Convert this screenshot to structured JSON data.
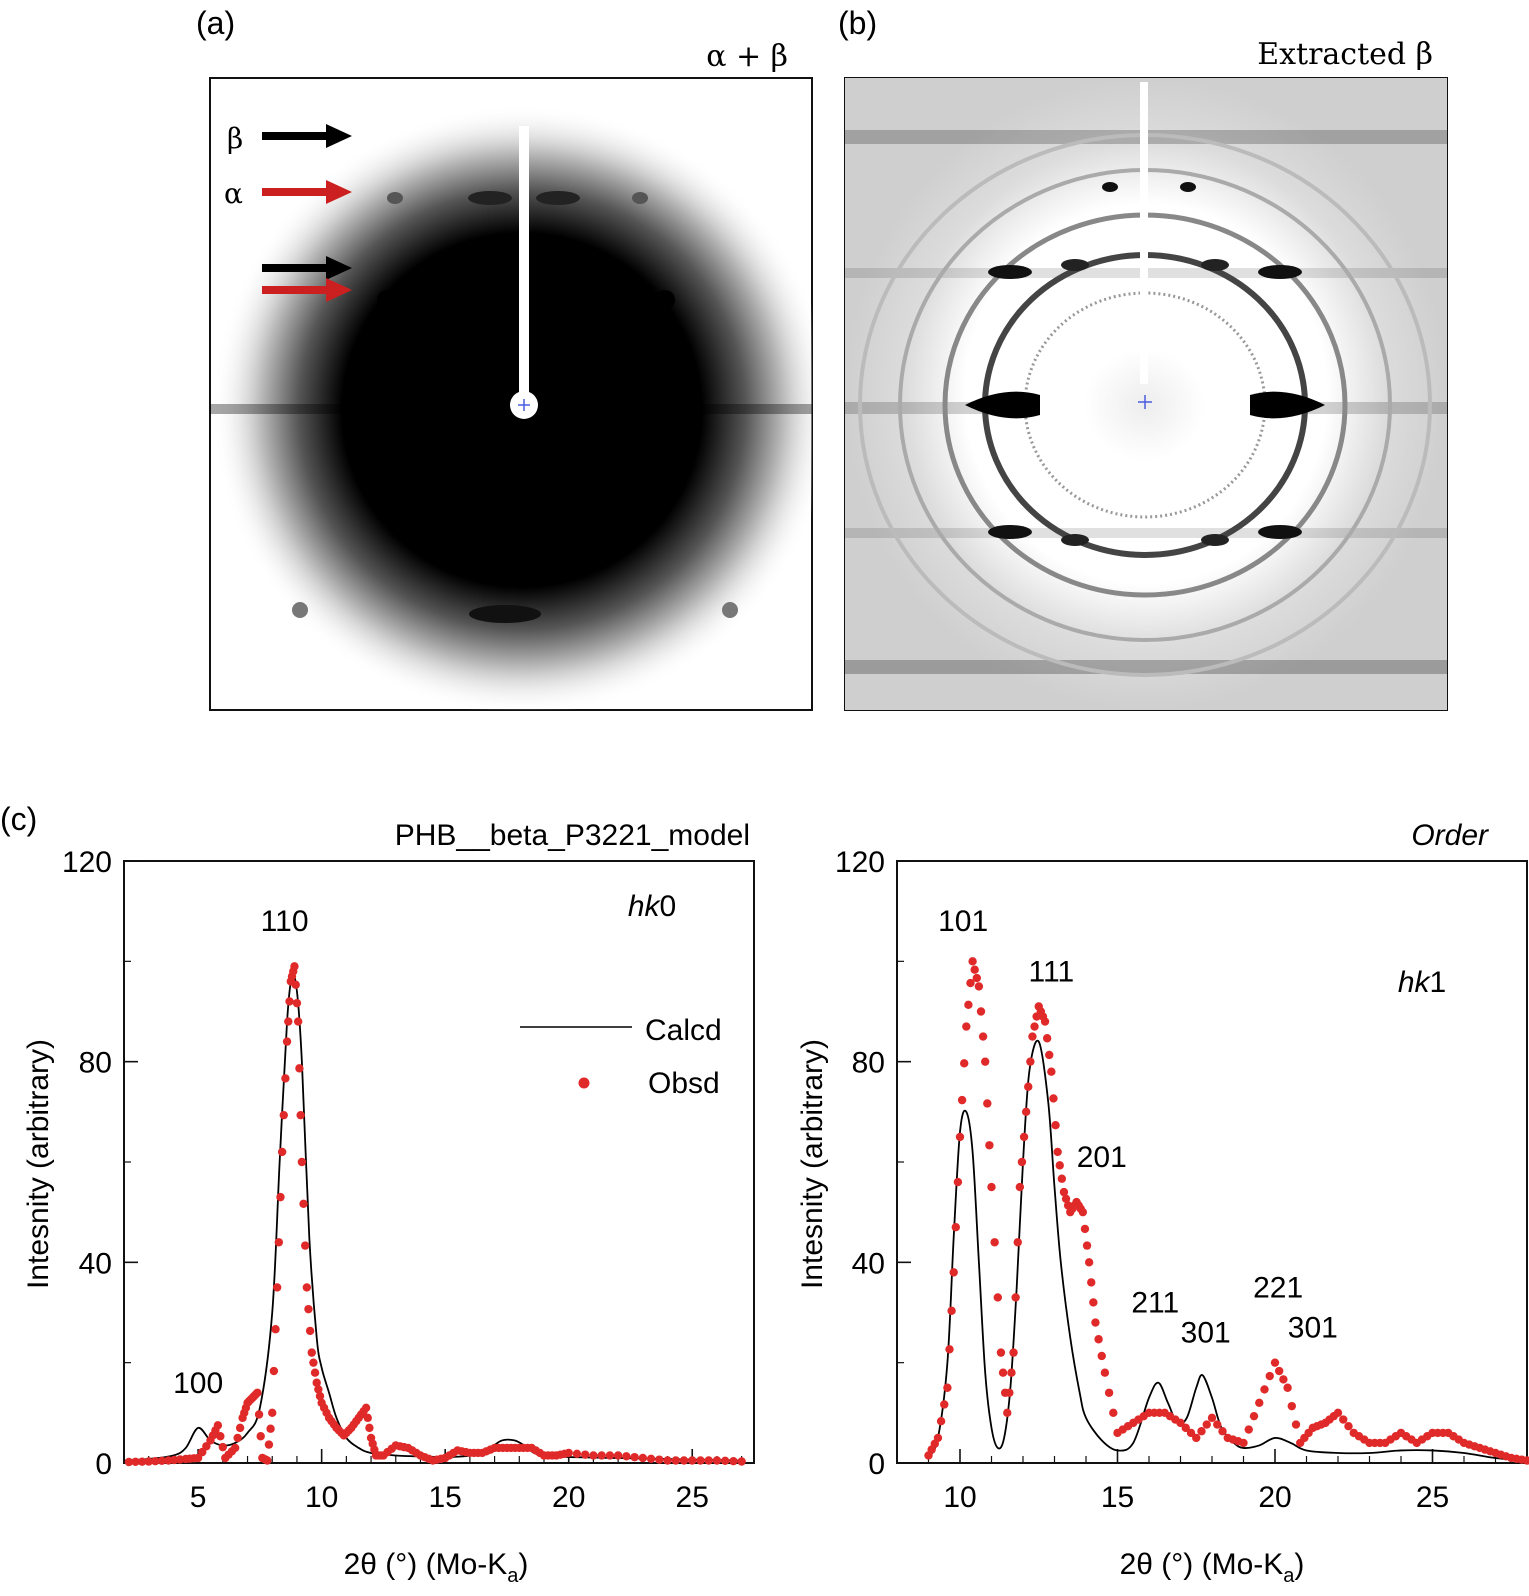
{
  "panel_a": {
    "letter": "(a)",
    "title": "α + β",
    "arrows": [
      {
        "label": "β",
        "color": "#000000"
      },
      {
        "label": "α",
        "color": "#cc1f1f"
      },
      {
        "label": "",
        "color": "#000000"
      },
      {
        "label": "",
        "color": "#cc1f1f"
      }
    ]
  },
  "panel_b": {
    "letter": "(b)",
    "title": "Extracted β"
  },
  "panel_c": {
    "letter": "(c)"
  },
  "colors": {
    "calc": "#000000",
    "obs": "#e02a2a"
  },
  "chart_data": [
    {
      "type": "line",
      "title": "PHB__beta_P3221_model",
      "annotation": "hk0",
      "xlabel_main": "2θ (°) (Mo-K",
      "xlabel_sub": "a",
      "xlabel_end": ")",
      "ylabel": "Intesnity (arbitrary)",
      "xlim": [
        2,
        27.5
      ],
      "ylim": [
        0,
        120
      ],
      "xticks": [
        5,
        10,
        15,
        20,
        25
      ],
      "yticks": [
        0,
        40,
        80,
        120
      ],
      "legend": {
        "position": "top-right",
        "calc_label": "Calcd",
        "obs_label": "Obsd"
      },
      "peak_labels": [
        {
          "text": "100",
          "x": 5.0,
          "y": 14
        },
        {
          "text": "110",
          "x": 8.5,
          "y": 106
        }
      ],
      "series": [
        {
          "name": "Calcd",
          "style": "line",
          "x": [
            2.0,
            3.0,
            4.0,
            4.5,
            5.0,
            5.5,
            6.0,
            6.5,
            7.0,
            7.5,
            8.0,
            8.3,
            8.6,
            8.8,
            9.0,
            9.2,
            9.5,
            9.8,
            10.0,
            10.3,
            10.6,
            11.0,
            11.5,
            12.0,
            13.0,
            14.0,
            15.0,
            16.0,
            16.8,
            17.3,
            17.8,
            18.2,
            18.6,
            19.0,
            20.0,
            22.0,
            24.0,
            26.0,
            27.0
          ],
          "y": [
            0.5,
            0.8,
            1.5,
            3.0,
            7.0,
            4.5,
            3.5,
            4.0,
            6.0,
            11.0,
            30.0,
            60.0,
            88.0,
            97.0,
            94.0,
            80.0,
            45.0,
            25.0,
            19.0,
            14.0,
            9.0,
            5.0,
            3.0,
            2.0,
            1.5,
            1.3,
            1.2,
            1.5,
            3.0,
            4.5,
            4.5,
            3.5,
            2.0,
            1.5,
            1.2,
            1.0,
            0.8,
            0.6,
            0.5
          ]
        },
        {
          "name": "Obsd",
          "style": "points",
          "x": [
            2.2,
            3.0,
            3.8,
            4.5,
            5.0,
            5.5,
            5.8,
            6.1,
            6.5,
            6.8,
            7.0,
            7.2,
            7.4,
            7.6,
            7.8,
            8.0,
            8.2,
            8.4,
            8.6,
            8.75,
            8.9,
            9.05,
            9.2,
            9.4,
            9.6,
            9.8,
            10.0,
            10.3,
            10.6,
            10.9,
            11.2,
            11.5,
            11.8,
            12.0,
            12.2,
            12.5,
            13.0,
            13.5,
            14.0,
            14.5,
            15.0,
            15.5,
            16.0,
            16.5,
            17.0,
            17.5,
            18.0,
            18.5,
            19.0,
            19.5,
            20.0,
            21.0,
            22.0,
            23.0,
            24.0,
            25.0,
            26.0,
            27.0
          ],
          "y": [
            0.2,
            0.3,
            0.5,
            0.8,
            1.0,
            4.5,
            7.5,
            1.0,
            3.0,
            9.0,
            12.0,
            13.0,
            14.0,
            1.0,
            0.5,
            10.0,
            35.0,
            62.0,
            84.0,
            96.0,
            99.0,
            88.0,
            60.0,
            35.0,
            22.0,
            16.0,
            12.0,
            9.0,
            7.0,
            5.5,
            7.0,
            9.0,
            11.0,
            5.0,
            1.5,
            1.5,
            3.5,
            3.0,
            1.5,
            0.5,
            1.0,
            2.5,
            2.0,
            2.0,
            3.0,
            3.0,
            3.0,
            3.0,
            1.5,
            1.5,
            2.0,
            1.5,
            1.5,
            1.0,
            0.5,
            0.5,
            0.5,
            0.3
          ]
        }
      ]
    },
    {
      "type": "line",
      "title": "Order",
      "annotation": "hk1",
      "xlabel_main": "2θ (°) (Mo-K",
      "xlabel_sub": "a",
      "xlabel_end": ")",
      "ylabel": "Intesnity (arbitrary)",
      "xlim": [
        8,
        28
      ],
      "ylim": [
        0,
        120
      ],
      "xticks": [
        10,
        15,
        20,
        25
      ],
      "yticks": [
        0,
        40,
        80,
        120
      ],
      "peak_labels": [
        {
          "text": "101",
          "x": 10.1,
          "y": 106
        },
        {
          "text": "111",
          "x": 12.9,
          "y": 96
        },
        {
          "text": "201",
          "x": 14.5,
          "y": 59
        },
        {
          "text": "211",
          "x": 16.2,
          "y": 30
        },
        {
          "text": "301",
          "x": 17.8,
          "y": 24
        },
        {
          "text": "221",
          "x": 20.1,
          "y": 33
        },
        {
          "text": "301",
          "x": 21.2,
          "y": 25
        }
      ],
      "series": [
        {
          "name": "Calcd",
          "style": "line",
          "x": [
            9.0,
            9.3,
            9.6,
            9.8,
            10.0,
            10.2,
            10.4,
            10.6,
            10.8,
            11.0,
            11.2,
            11.4,
            11.6,
            11.8,
            12.0,
            12.2,
            12.5,
            12.8,
            13.0,
            13.2,
            13.5,
            13.8,
            14.0,
            14.5,
            15.0,
            15.5,
            16.0,
            16.3,
            16.6,
            16.9,
            17.2,
            17.5,
            17.7,
            18.0,
            18.3,
            18.7,
            19.0,
            19.5,
            20.0,
            20.5,
            21.0,
            22.0,
            23.0,
            24.0,
            25.0,
            26.0,
            27.0,
            28.0
          ],
          "y": [
            1.0,
            5.0,
            20.0,
            45.0,
            66.0,
            70.0,
            62.0,
            40.0,
            18.0,
            7.0,
            3.0,
            5.0,
            15.0,
            35.0,
            60.0,
            78.0,
            84.0,
            72.0,
            55.0,
            40.0,
            25.0,
            14.0,
            9.0,
            4.5,
            2.5,
            4.0,
            13.0,
            16.0,
            12.0,
            8.0,
            9.0,
            15.0,
            17.5,
            13.0,
            7.0,
            4.0,
            3.0,
            3.5,
            5.0,
            4.0,
            2.5,
            2.0,
            2.0,
            2.5,
            2.5,
            2.0,
            1.0,
            0.5
          ]
        },
        {
          "name": "Obsd",
          "style": "points",
          "x": [
            9.0,
            9.3,
            9.6,
            9.8,
            10.0,
            10.2,
            10.4,
            10.6,
            10.8,
            11.0,
            11.3,
            11.5,
            11.7,
            11.9,
            12.1,
            12.3,
            12.5,
            12.7,
            12.9,
            13.1,
            13.3,
            13.5,
            13.7,
            13.9,
            14.1,
            14.3,
            14.6,
            15.0,
            15.5,
            16.0,
            16.5,
            17.0,
            17.5,
            18.0,
            18.5,
            19.0,
            19.5,
            20.0,
            20.4,
            20.8,
            21.2,
            21.6,
            22.0,
            22.5,
            23.0,
            23.5,
            24.0,
            24.5,
            25.0,
            25.5,
            26.0,
            26.5,
            27.0,
            27.5,
            28.0
          ],
          "y": [
            1.5,
            5.0,
            15.0,
            38.0,
            65.0,
            87.0,
            100.0,
            95.0,
            80.0,
            55.0,
            22.0,
            10.0,
            22.0,
            55.0,
            70.0,
            85.0,
            91.0,
            88.0,
            78.0,
            62.0,
            54.0,
            50.0,
            52.0,
            50.0,
            40.0,
            28.0,
            18.0,
            6.0,
            8.0,
            10.0,
            10.0,
            8.0,
            5.0,
            9.0,
            5.0,
            4.0,
            12.0,
            20.0,
            15.0,
            4.0,
            7.0,
            8.0,
            10.0,
            6.0,
            4.0,
            4.0,
            6.0,
            4.0,
            6.0,
            6.0,
            4.0,
            3.0,
            2.0,
            1.0,
            0.5
          ]
        }
      ]
    }
  ]
}
